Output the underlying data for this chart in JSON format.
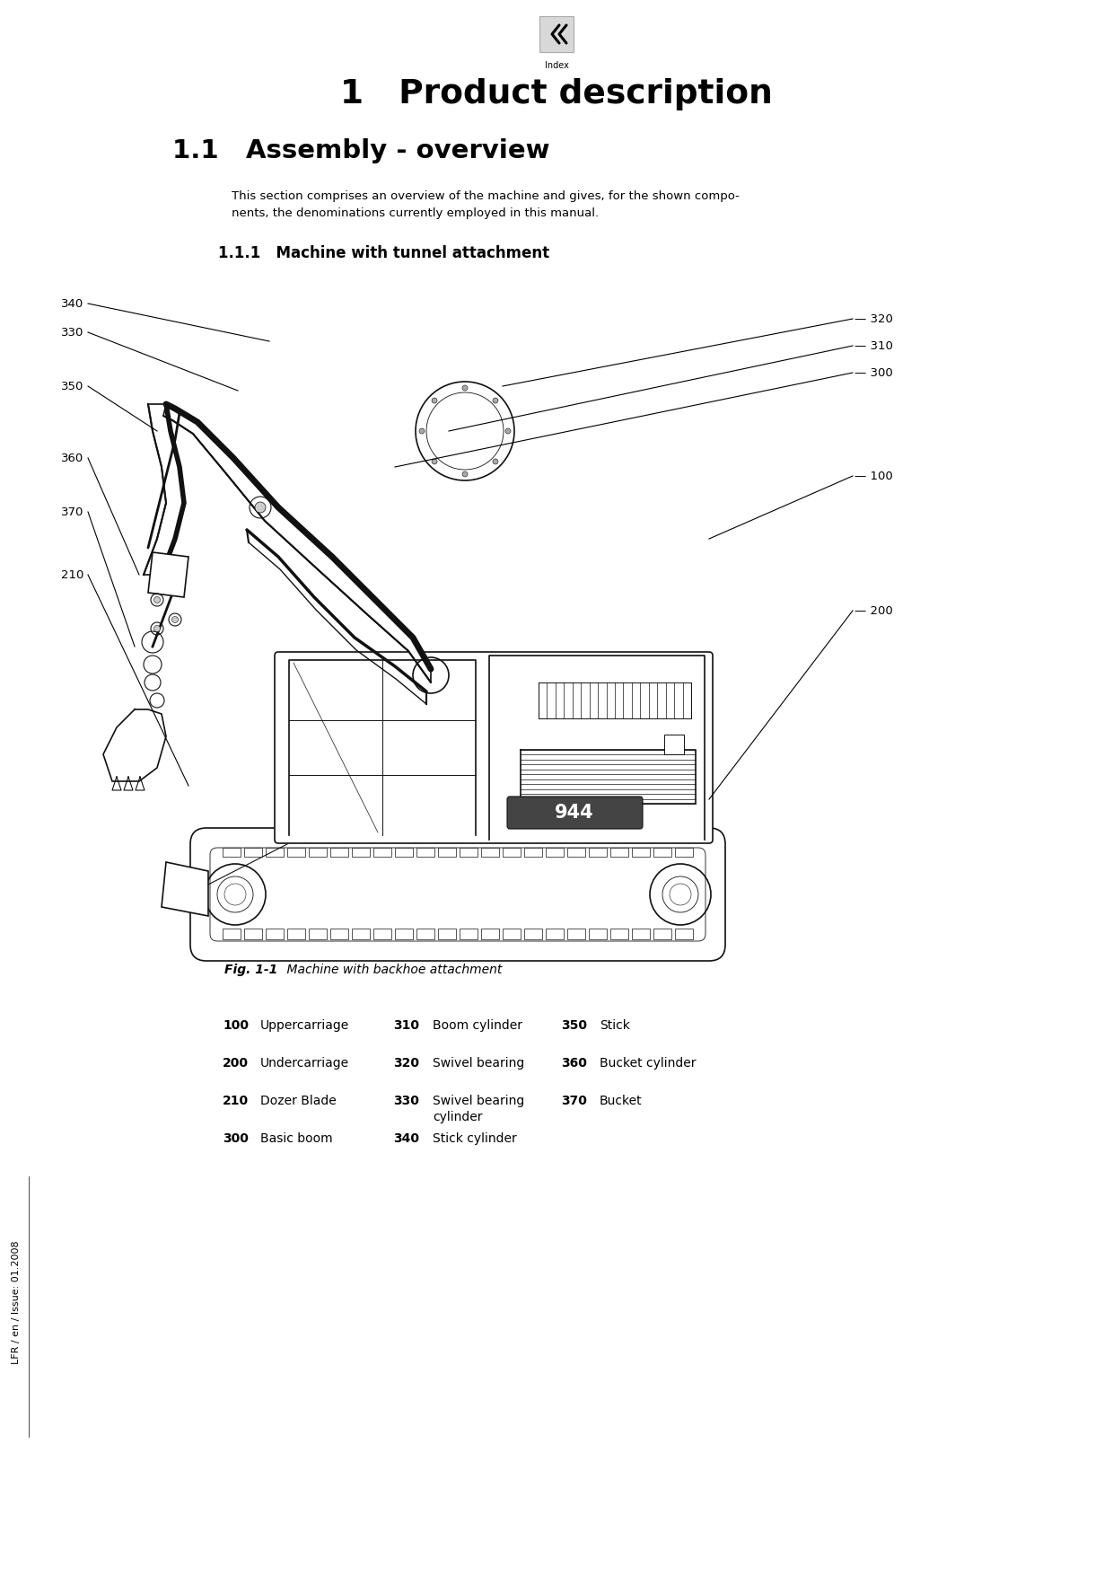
{
  "bg_color": "#ffffff",
  "title": "1   Product description",
  "section_title": "1.1   Assembly - overview",
  "section_body": "This section comprises an overview of the machine and gives, for the shown compo-\nnents, the denominations currently employed in this manual.",
  "subsection_title": "1.1.1   Machine with tunnel attachment",
  "fig_caption_bold": "Fig. 1-1",
  "fig_caption_normal": "    Machine with backhoe attachment",
  "sidebar_text": "LFR / en / Issue: 01.2008",
  "index_label": "Index",
  "parts_col1": [
    [
      "100",
      "Uppercarriage"
    ],
    [
      "200",
      "Undercarriage"
    ],
    [
      "210",
      "Dozer Blade"
    ],
    [
      "300",
      "Basic boom"
    ]
  ],
  "parts_col2": [
    [
      "310",
      "Boom cylinder"
    ],
    [
      "320",
      "Swivel bearing"
    ],
    [
      "330",
      "Swivel bearing\ncylinder"
    ],
    [
      "340",
      "Stick cylinder"
    ]
  ],
  "parts_col3": [
    [
      "350",
      "Stick"
    ],
    [
      "360",
      "Bucket cylinder"
    ],
    [
      "370",
      "Bucket"
    ]
  ]
}
